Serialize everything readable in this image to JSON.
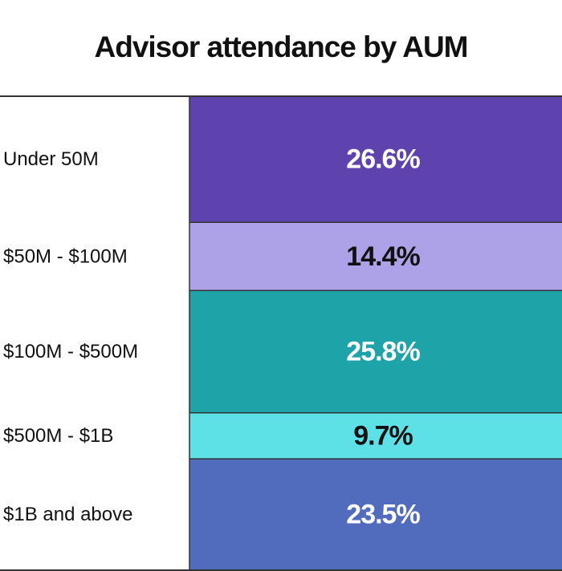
{
  "chart_data": {
    "type": "bar",
    "title": "Advisor attendance by AUM",
    "categories": [
      "Under 50M",
      "$50M - $100M",
      "$100M - $500M",
      "$500M - $1B",
      "$1B and above"
    ],
    "values": [
      26.6,
      14.4,
      25.8,
      9.7,
      23.5
    ],
    "value_labels": [
      "26.6%",
      "14.4%",
      "25.8%",
      "9.7%",
      "23.5%"
    ],
    "colors": [
      "#5E42AE",
      "#ADA1E8",
      "#1EA3A8",
      "#5DE0E6",
      "#516CBD"
    ],
    "label_colors": [
      "#FFFFFF",
      "#111111",
      "#FFFFFF",
      "#111111",
      "#FFFFFF"
    ],
    "unit": "%",
    "grid": false,
    "legend": "none"
  }
}
